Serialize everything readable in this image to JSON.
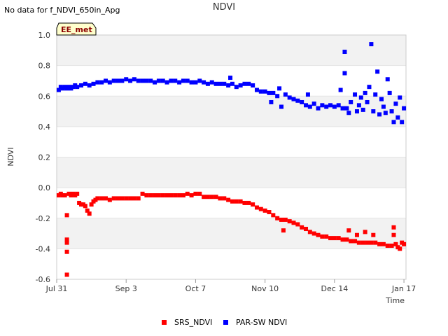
{
  "header": {
    "nodata": "No data for f_NDVI_650in_Apg",
    "title": "NDVI"
  },
  "badge": "EE_met",
  "chart_data": {
    "type": "scatter",
    "title": "NDVI",
    "xlabel": "Time",
    "ylabel": "NDVI",
    "x_ticks": [
      "Jul 31",
      "Sep 3",
      "Oct 7",
      "Nov 10",
      "Dec 14",
      "Jan 17"
    ],
    "x_range": [
      "Jul 31",
      "Jan 18"
    ],
    "ylim": [
      -0.6,
      1.0
    ],
    "y_ticks": [
      "1.0",
      "0.8",
      "0.6",
      "0.4",
      "0.2",
      "0.0",
      "-0.2",
      "-0.4",
      "-0.6"
    ],
    "grid": "alternating horizontal bands",
    "legend_position": "bottom-center",
    "series": [
      {
        "name": "SRS_NDVI",
        "color": "#ff0000",
        "points": [
          [
            "Aug 1",
            -0.05
          ],
          [
            "Aug 2",
            -0.04
          ],
          [
            "Aug 3",
            -0.05
          ],
          [
            "Aug 4",
            -0.05
          ],
          [
            "Aug 5",
            -0.18
          ],
          [
            "Aug 5",
            -0.34
          ],
          [
            "Aug 5",
            -0.36
          ],
          [
            "Aug 5",
            -0.42
          ],
          [
            "Aug 5",
            -0.57
          ],
          [
            "Aug 6",
            -0.04
          ],
          [
            "Aug 7",
            -0.05
          ],
          [
            "Aug 8",
            -0.04
          ],
          [
            "Aug 9",
            -0.05
          ],
          [
            "Aug 10",
            -0.04
          ],
          [
            "Aug 11",
            -0.1
          ],
          [
            "Aug 12",
            -0.11
          ],
          [
            "Aug 13",
            -0.11
          ],
          [
            "Aug 14",
            -0.12
          ],
          [
            "Aug 15",
            -0.15
          ],
          [
            "Aug 16",
            -0.17
          ],
          [
            "Aug 17",
            -0.11
          ],
          [
            "Aug 18",
            -0.09
          ],
          [
            "Aug 19",
            -0.08
          ],
          [
            "Aug 20",
            -0.07
          ],
          [
            "Aug 22",
            -0.07
          ],
          [
            "Aug 24",
            -0.07
          ],
          [
            "Aug 26",
            -0.08
          ],
          [
            "Aug 28",
            -0.07
          ],
          [
            "Aug 30",
            -0.07
          ],
          [
            "Sep 1",
            -0.07
          ],
          [
            "Sep 3",
            -0.07
          ],
          [
            "Sep 5",
            -0.07
          ],
          [
            "Sep 7",
            -0.07
          ],
          [
            "Sep 9",
            -0.07
          ],
          [
            "Sep 11",
            -0.04
          ],
          [
            "Sep 13",
            -0.05
          ],
          [
            "Sep 15",
            -0.05
          ],
          [
            "Sep 17",
            -0.05
          ],
          [
            "Sep 19",
            -0.05
          ],
          [
            "Sep 21",
            -0.05
          ],
          [
            "Sep 23",
            -0.05
          ],
          [
            "Sep 25",
            -0.05
          ],
          [
            "Sep 27",
            -0.05
          ],
          [
            "Sep 29",
            -0.05
          ],
          [
            "Oct 1",
            -0.05
          ],
          [
            "Oct 3",
            -0.04
          ],
          [
            "Oct 5",
            -0.05
          ],
          [
            "Oct 7",
            -0.04
          ],
          [
            "Oct 9",
            -0.04
          ],
          [
            "Oct 11",
            -0.06
          ],
          [
            "Oct 13",
            -0.06
          ],
          [
            "Oct 15",
            -0.06
          ],
          [
            "Oct 17",
            -0.06
          ],
          [
            "Oct 19",
            -0.07
          ],
          [
            "Oct 21",
            -0.07
          ],
          [
            "Oct 23",
            -0.08
          ],
          [
            "Oct 25",
            -0.09
          ],
          [
            "Oct 27",
            -0.09
          ],
          [
            "Oct 29",
            -0.09
          ],
          [
            "Oct 31",
            -0.1
          ],
          [
            "Nov 2",
            -0.1
          ],
          [
            "Nov 4",
            -0.11
          ],
          [
            "Nov 6",
            -0.13
          ],
          [
            "Nov 8",
            -0.14
          ],
          [
            "Nov 10",
            -0.15
          ],
          [
            "Nov 12",
            -0.16
          ],
          [
            "Nov 14",
            -0.18
          ],
          [
            "Nov 16",
            -0.2
          ],
          [
            "Nov 18",
            -0.21
          ],
          [
            "Nov 19",
            -0.28
          ],
          [
            "Nov 20",
            -0.21
          ],
          [
            "Nov 22",
            -0.22
          ],
          [
            "Nov 24",
            -0.23
          ],
          [
            "Nov 26",
            -0.24
          ],
          [
            "Nov 28",
            -0.26
          ],
          [
            "Nov 30",
            -0.27
          ],
          [
            "Dec 2",
            -0.29
          ],
          [
            "Dec 4",
            -0.3
          ],
          [
            "Dec 6",
            -0.31
          ],
          [
            "Dec 8",
            -0.32
          ],
          [
            "Dec 10",
            -0.32
          ],
          [
            "Dec 12",
            -0.33
          ],
          [
            "Dec 14",
            -0.33
          ],
          [
            "Dec 16",
            -0.33
          ],
          [
            "Dec 18",
            -0.34
          ],
          [
            "Dec 20",
            -0.34
          ],
          [
            "Dec 21",
            -0.28
          ],
          [
            "Dec 22",
            -0.35
          ],
          [
            "Dec 24",
            -0.35
          ],
          [
            "Dec 25",
            -0.31
          ],
          [
            "Dec 26",
            -0.36
          ],
          [
            "Dec 28",
            -0.36
          ],
          [
            "Dec 29",
            -0.29
          ],
          [
            "Dec 30",
            -0.36
          ],
          [
            "Jan 1",
            -0.36
          ],
          [
            "Jan 2",
            -0.31
          ],
          [
            "Jan 3",
            -0.36
          ],
          [
            "Jan 5",
            -0.37
          ],
          [
            "Jan 7",
            -0.37
          ],
          [
            "Jan 9",
            -0.38
          ],
          [
            "Jan 11",
            -0.38
          ],
          [
            "Jan 12",
            -0.26
          ],
          [
            "Jan 12",
            -0.31
          ],
          [
            "Jan 13",
            -0.37
          ],
          [
            "Jan 14",
            -0.39
          ],
          [
            "Jan 15",
            -0.4
          ],
          [
            "Jan 16",
            -0.36
          ],
          [
            "Jan 17",
            -0.37
          ]
        ]
      },
      {
        "name": "PAR-SW NDVI",
        "color": "#0000ff",
        "points": [
          [
            "Aug 1",
            0.64
          ],
          [
            "Aug 2",
            0.66
          ],
          [
            "Aug 3",
            0.65
          ],
          [
            "Aug 4",
            0.66
          ],
          [
            "Aug 5",
            0.65
          ],
          [
            "Aug 6",
            0.66
          ],
          [
            "Aug 7",
            0.65
          ],
          [
            "Aug 8",
            0.66
          ],
          [
            "Aug 9",
            0.67
          ],
          [
            "Aug 10",
            0.66
          ],
          [
            "Aug 12",
            0.67
          ],
          [
            "Aug 14",
            0.68
          ],
          [
            "Aug 16",
            0.67
          ],
          [
            "Aug 18",
            0.68
          ],
          [
            "Aug 20",
            0.69
          ],
          [
            "Aug 22",
            0.69
          ],
          [
            "Aug 24",
            0.7
          ],
          [
            "Aug 26",
            0.69
          ],
          [
            "Aug 28",
            0.7
          ],
          [
            "Aug 30",
            0.7
          ],
          [
            "Sep 1",
            0.7
          ],
          [
            "Sep 3",
            0.71
          ],
          [
            "Sep 5",
            0.7
          ],
          [
            "Sep 7",
            0.71
          ],
          [
            "Sep 9",
            0.7
          ],
          [
            "Sep 11",
            0.7
          ],
          [
            "Sep 13",
            0.7
          ],
          [
            "Sep 15",
            0.7
          ],
          [
            "Sep 17",
            0.69
          ],
          [
            "Sep 19",
            0.7
          ],
          [
            "Sep 21",
            0.7
          ],
          [
            "Sep 23",
            0.69
          ],
          [
            "Sep 25",
            0.7
          ],
          [
            "Sep 27",
            0.7
          ],
          [
            "Sep 29",
            0.69
          ],
          [
            "Oct 1",
            0.7
          ],
          [
            "Oct 3",
            0.7
          ],
          [
            "Oct 5",
            0.69
          ],
          [
            "Oct 7",
            0.69
          ],
          [
            "Oct 9",
            0.7
          ],
          [
            "Oct 11",
            0.69
          ],
          [
            "Oct 13",
            0.68
          ],
          [
            "Oct 15",
            0.69
          ],
          [
            "Oct 17",
            0.68
          ],
          [
            "Oct 19",
            0.68
          ],
          [
            "Oct 21",
            0.68
          ],
          [
            "Oct 23",
            0.67
          ],
          [
            "Oct 24",
            0.72
          ],
          [
            "Oct 25",
            0.68
          ],
          [
            "Oct 27",
            0.66
          ],
          [
            "Oct 29",
            0.67
          ],
          [
            "Oct 31",
            0.68
          ],
          [
            "Nov 2",
            0.68
          ],
          [
            "Nov 4",
            0.67
          ],
          [
            "Nov 6",
            0.64
          ],
          [
            "Nov 8",
            0.63
          ],
          [
            "Nov 10",
            0.63
          ],
          [
            "Nov 12",
            0.62
          ],
          [
            "Nov 13",
            0.56
          ],
          [
            "Nov 14",
            0.62
          ],
          [
            "Nov 16",
            0.6
          ],
          [
            "Nov 17",
            0.65
          ],
          [
            "Nov 18",
            0.53
          ],
          [
            "Nov 20",
            0.61
          ],
          [
            "Nov 22",
            0.59
          ],
          [
            "Nov 24",
            0.58
          ],
          [
            "Nov 26",
            0.57
          ],
          [
            "Nov 28",
            0.56
          ],
          [
            "Nov 30",
            0.54
          ],
          [
            "Dec 1",
            0.61
          ],
          [
            "Dec 2",
            0.53
          ],
          [
            "Dec 4",
            0.55
          ],
          [
            "Dec 6",
            0.52
          ],
          [
            "Dec 8",
            0.54
          ],
          [
            "Dec 10",
            0.53
          ],
          [
            "Dec 12",
            0.54
          ],
          [
            "Dec 14",
            0.53
          ],
          [
            "Dec 16",
            0.54
          ],
          [
            "Dec 17",
            0.64
          ],
          [
            "Dec 18",
            0.52
          ],
          [
            "Dec 19",
            0.75
          ],
          [
            "Dec 19",
            0.89
          ],
          [
            "Dec 20",
            0.52
          ],
          [
            "Dec 21",
            0.49
          ],
          [
            "Dec 22",
            0.56
          ],
          [
            "Dec 24",
            0.61
          ],
          [
            "Dec 25",
            0.5
          ],
          [
            "Dec 26",
            0.54
          ],
          [
            "Dec 27",
            0.59
          ],
          [
            "Dec 28",
            0.51
          ],
          [
            "Dec 29",
            0.62
          ],
          [
            "Dec 30",
            0.56
          ],
          [
            "Dec 31",
            0.66
          ],
          [
            "Jan 1",
            0.94
          ],
          [
            "Jan 2",
            0.5
          ],
          [
            "Jan 3",
            0.61
          ],
          [
            "Jan 4",
            0.76
          ],
          [
            "Jan 5",
            0.48
          ],
          [
            "Jan 6",
            0.58
          ],
          [
            "Jan 7",
            0.53
          ],
          [
            "Jan 8",
            0.49
          ],
          [
            "Jan 9",
            0.71
          ],
          [
            "Jan 10",
            0.62
          ],
          [
            "Jan 11",
            0.5
          ],
          [
            "Jan 12",
            0.43
          ],
          [
            "Jan 13",
            0.55
          ],
          [
            "Jan 14",
            0.46
          ],
          [
            "Jan 15",
            0.59
          ],
          [
            "Jan 16",
            0.43
          ],
          [
            "Jan 17",
            0.52
          ]
        ]
      }
    ]
  }
}
